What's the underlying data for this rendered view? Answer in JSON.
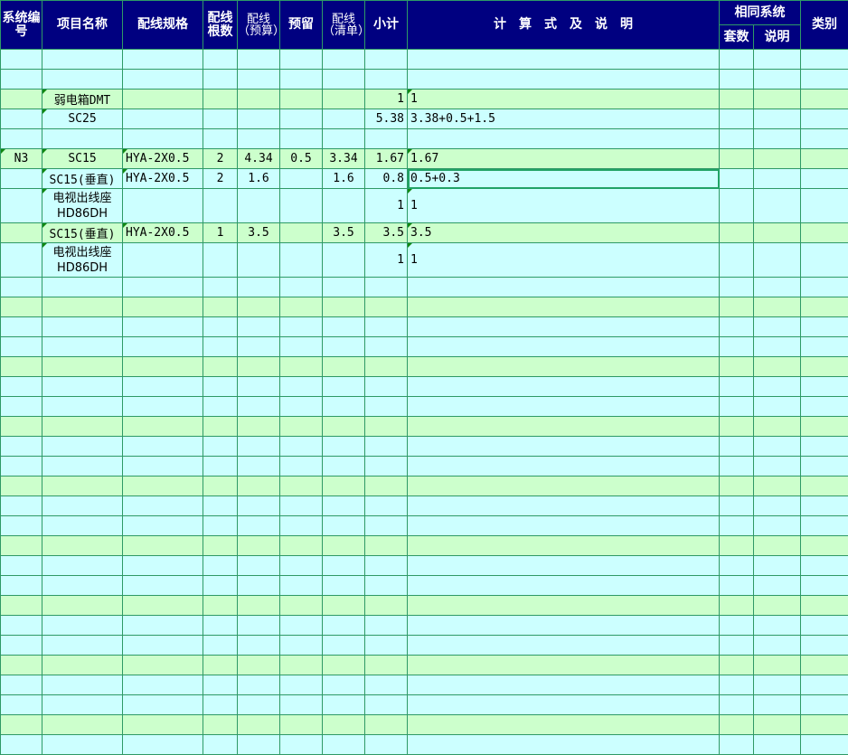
{
  "header": {
    "sys_code": "系统编号",
    "item_name": "项目名称",
    "wire_spec": "配线规格",
    "wire_count": "配线根数",
    "wire_budget": "配线（预算）",
    "reserve": "预留",
    "wire_list": "配线（清单）",
    "subtotal": "小计",
    "formula": "计　算　式　及　说　明",
    "same_system": "相同系统",
    "sets": "套数",
    "note": "说明",
    "category": "类别"
  },
  "colors": {
    "header_bg": "#000080",
    "row_cyan": "#ccffff",
    "row_green": "#ccffcc",
    "grid": "#2e9a66",
    "selection": "#21a366"
  },
  "selected_cell": {
    "row": 7,
    "column": "formula"
  },
  "rows": [
    {
      "cells": [
        "",
        "",
        "",
        "",
        "",
        "",
        "",
        "",
        "",
        "",
        "",
        ""
      ]
    },
    {
      "cells": [
        "",
        "",
        "",
        "",
        "",
        "",
        "",
        "",
        "",
        "",
        "",
        ""
      ]
    },
    {
      "cells": [
        "",
        "弱电箱DMT",
        "",
        "",
        "",
        "",
        "",
        "1",
        "1",
        "",
        "",
        ""
      ],
      "marks": [
        1,
        8
      ]
    },
    {
      "cells": [
        "",
        "SC25",
        "",
        "",
        "",
        "",
        "",
        "5.38",
        "3.38+0.5+1.5",
        "",
        "",
        ""
      ],
      "marks": [
        1
      ]
    },
    {
      "cells": [
        "",
        "",
        "",
        "",
        "",
        "",
        "",
        "",
        "",
        "",
        "",
        ""
      ]
    },
    {
      "cells": [
        "N3",
        "SC15",
        "HYA-2X0.5",
        "2",
        "4.34",
        "0.5",
        "3.34",
        "1.67",
        "1.67",
        "",
        "",
        ""
      ],
      "marks": [
        0,
        1,
        2,
        8
      ]
    },
    {
      "cells": [
        "",
        "SC15(垂直)",
        "HYA-2X0.5",
        "2",
        "1.6",
        "",
        "1.6",
        "0.8",
        "0.5+0.3",
        "",
        "",
        ""
      ],
      "marks": [
        1,
        2
      ]
    },
    {
      "cells": [
        "",
        "电视出线座HD86DH",
        "",
        "",
        "",
        "",
        "",
        "1",
        "1",
        "",
        "",
        ""
      ],
      "marks": [
        1,
        8
      ],
      "tall": true
    },
    {
      "cells": [
        "",
        "SC15(垂直)",
        "HYA-2X0.5",
        "1",
        "3.5",
        "",
        "3.5",
        "3.5",
        "3.5",
        "",
        "",
        ""
      ],
      "marks": [
        1,
        2,
        8
      ]
    },
    {
      "cells": [
        "",
        "电视出线座HD86DH",
        "",
        "",
        "",
        "",
        "",
        "1",
        "1",
        "",
        "",
        ""
      ],
      "marks": [
        1,
        8
      ],
      "tall": true
    }
  ],
  "empty_rows_after": 24
}
